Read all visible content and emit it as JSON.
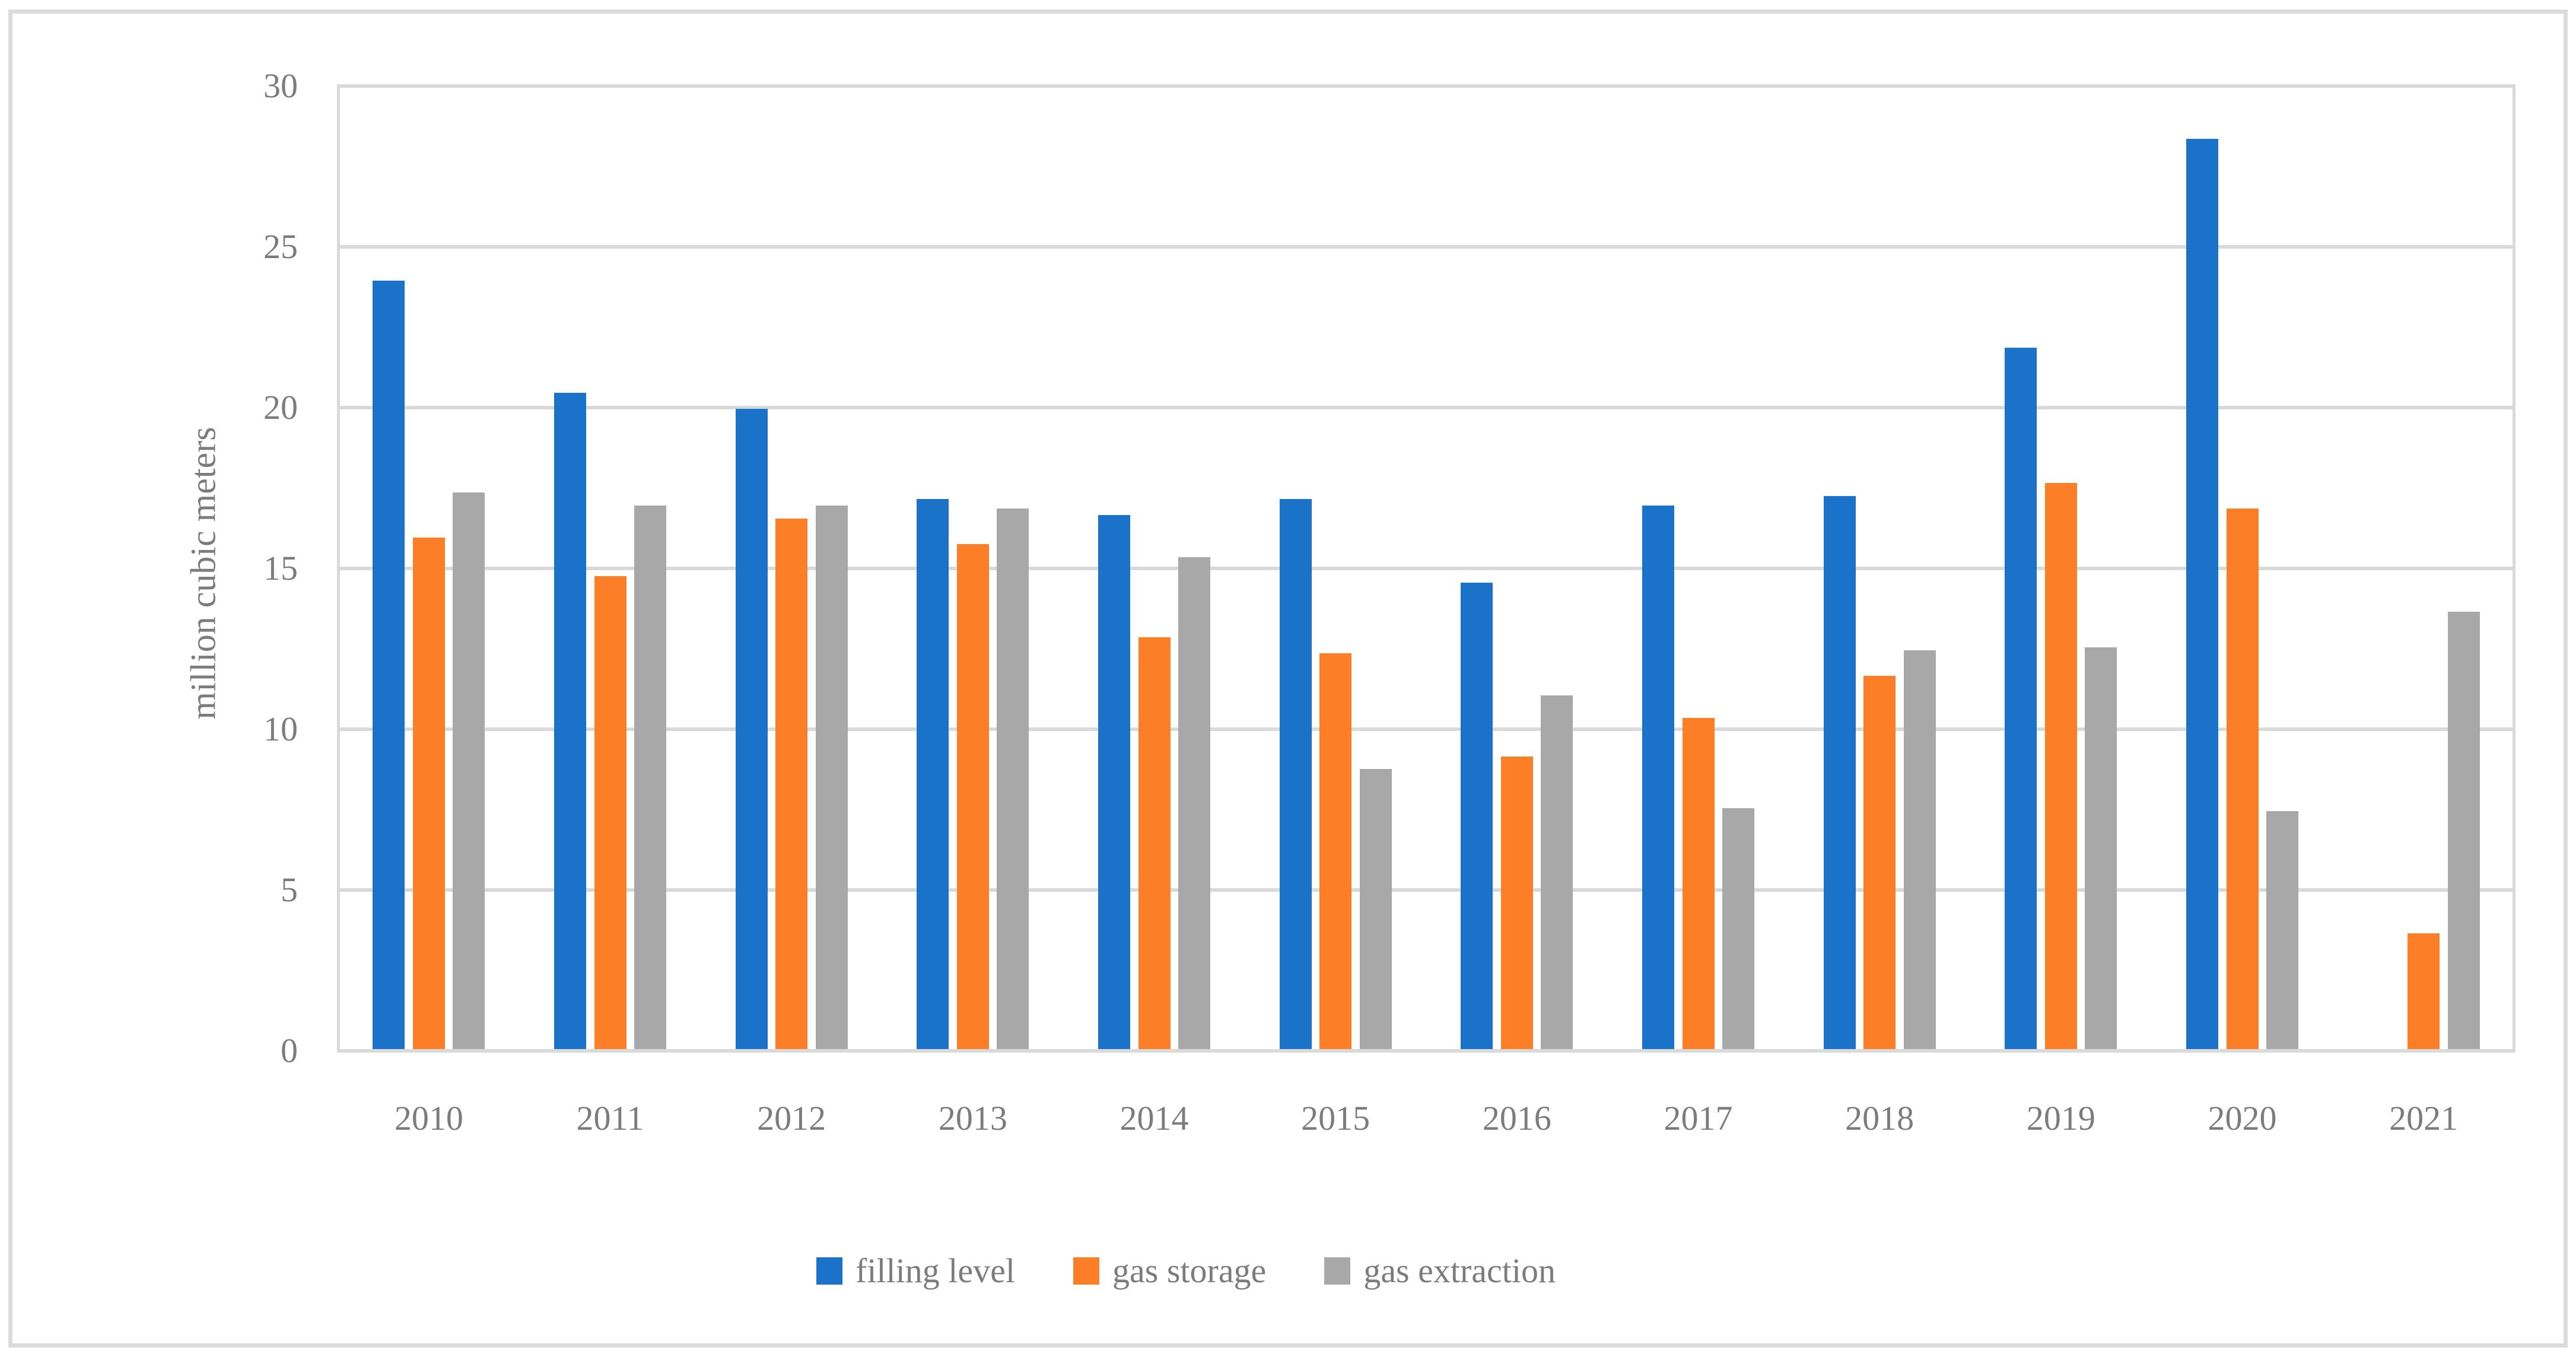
{
  "chart_data": {
    "type": "bar",
    "title": "",
    "categories": [
      "2010",
      "2011",
      "2012",
      "2013",
      "2014",
      "2015",
      "2016",
      "2017",
      "2018",
      "2019",
      "2020",
      "2021"
    ],
    "series": [
      {
        "name": "filling level",
        "color": "#1B73C9",
        "values": [
          23.9,
          20.4,
          19.9,
          17.1,
          16.6,
          17.1,
          14.5,
          16.9,
          17.2,
          21.8,
          28.3,
          0
        ]
      },
      {
        "name": "gas storage",
        "color": "#FC7E27",
        "values": [
          15.9,
          14.7,
          16.5,
          15.7,
          12.8,
          12.3,
          9.1,
          10.3,
          11.6,
          17.6,
          16.8,
          3.6
        ]
      },
      {
        "name": "gas extraction",
        "color": "#A8A8A8",
        "values": [
          17.3,
          16.9,
          16.9,
          16.8,
          15.3,
          8.7,
          11.0,
          7.5,
          12.4,
          12.5,
          7.4,
          13.6
        ]
      }
    ],
    "xlabel": "",
    "ylabel": "million cubic meters",
    "yticks": [
      0,
      5,
      10,
      15,
      20,
      25,
      30
    ],
    "ylim": [
      0,
      30
    ],
    "grid": true,
    "legend_position": "bottom",
    "colors": {
      "gridline": "#D9D9D9",
      "axis_text": "#7C7C7C",
      "frame_border": "#DBDBDB",
      "background": "#FFFFFF"
    }
  }
}
